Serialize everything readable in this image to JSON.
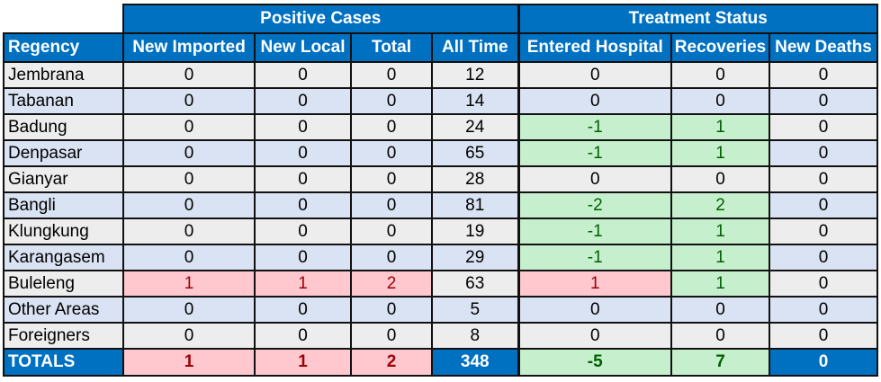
{
  "groups": {
    "positive": "Positive Cases",
    "treatment": "Treatment Status"
  },
  "columns": [
    "Regency",
    "New Imported",
    "New Local",
    "Total",
    "All Time",
    "Entered Hospital",
    "Recoveries",
    "New Deaths"
  ],
  "rows": [
    {
      "name": "Jembrana",
      "values": [
        "0",
        "0",
        "0",
        "12",
        "0",
        "0",
        "0"
      ],
      "flags": [
        "",
        "",
        "",
        "",
        "",
        "",
        ""
      ]
    },
    {
      "name": "Tabanan",
      "values": [
        "0",
        "0",
        "0",
        "14",
        "0",
        "0",
        "0"
      ],
      "flags": [
        "",
        "",
        "",
        "",
        "",
        "",
        ""
      ]
    },
    {
      "name": "Badung",
      "values": [
        "0",
        "0",
        "0",
        "24",
        "-1",
        "1",
        "0"
      ],
      "flags": [
        "",
        "",
        "",
        "",
        "green",
        "green",
        ""
      ]
    },
    {
      "name": "Denpasar",
      "values": [
        "0",
        "0",
        "0",
        "65",
        "-1",
        "1",
        "0"
      ],
      "flags": [
        "",
        "",
        "",
        "",
        "green",
        "green",
        ""
      ]
    },
    {
      "name": "Gianyar",
      "values": [
        "0",
        "0",
        "0",
        "28",
        "0",
        "0",
        "0"
      ],
      "flags": [
        "",
        "",
        "",
        "",
        "",
        "",
        ""
      ]
    },
    {
      "name": "Bangli",
      "values": [
        "0",
        "0",
        "0",
        "81",
        "-2",
        "2",
        "0"
      ],
      "flags": [
        "",
        "",
        "",
        "",
        "green",
        "green",
        ""
      ]
    },
    {
      "name": "Klungkung",
      "values": [
        "0",
        "0",
        "0",
        "19",
        "-1",
        "1",
        "0"
      ],
      "flags": [
        "",
        "",
        "",
        "",
        "green",
        "green",
        ""
      ]
    },
    {
      "name": "Karangasem",
      "values": [
        "0",
        "0",
        "0",
        "29",
        "-1",
        "1",
        "0"
      ],
      "flags": [
        "",
        "",
        "",
        "",
        "green",
        "green",
        ""
      ]
    },
    {
      "name": "Buleleng",
      "values": [
        "1",
        "1",
        "2",
        "63",
        "1",
        "1",
        "0"
      ],
      "flags": [
        "red",
        "red",
        "red",
        "",
        "red",
        "green",
        ""
      ]
    },
    {
      "name": "Other Areas",
      "values": [
        "0",
        "0",
        "0",
        "5",
        "0",
        "0",
        "0"
      ],
      "flags": [
        "",
        "",
        "",
        "",
        "",
        "",
        ""
      ]
    },
    {
      "name": "Foreigners",
      "values": [
        "0",
        "0",
        "0",
        "8",
        "0",
        "0",
        "0"
      ],
      "flags": [
        "",
        "",
        "",
        "",
        "",
        "",
        ""
      ]
    }
  ],
  "totals": {
    "label": "TOTALS",
    "values": [
      "1",
      "1",
      "2",
      "348",
      "-5",
      "7",
      "0"
    ],
    "flags": [
      "red",
      "red",
      "red",
      "hdr",
      "green",
      "green",
      "hdr"
    ]
  },
  "colors": {
    "header_blue": "#0070c0",
    "row_gray": "#ededed",
    "row_blue": "#dae3f3",
    "red_fill": "#ffc7ce",
    "red_text": "#9c0006",
    "green_fill": "#c6efce",
    "green_text": "#006100"
  }
}
